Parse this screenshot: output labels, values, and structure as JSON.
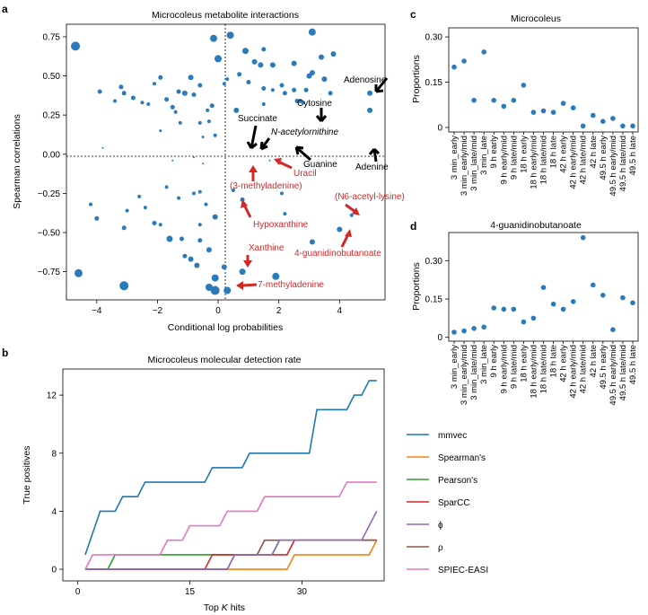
{
  "panels": {
    "a": {
      "letter": "a",
      "title": "Microcoleus metabolite interactions",
      "xlabel": "Conditional log probabilities",
      "ylabel": "Spearman correlations"
    },
    "b": {
      "letter": "b",
      "title": "Microcoleus molecular detection rate",
      "xlabel": "Top K hits",
      "ylabel": "True positives"
    },
    "c": {
      "letter": "c",
      "title": "Microcoleus",
      "ylabel": "Proportions"
    },
    "d": {
      "letter": "d",
      "title": "4-guanidinobutanoate",
      "ylabel": "Proportions"
    }
  },
  "annotations": [
    {
      "text": "Adenosine",
      "color": "#000000"
    },
    {
      "text": "Cytosine",
      "color": "#000000"
    },
    {
      "text": "Succinate",
      "color": "#000000"
    },
    {
      "text": "N-acetylornithine",
      "color": "#000000"
    },
    {
      "text": "Adenine",
      "color": "#000000"
    },
    {
      "text": "Guanine",
      "color": "#000000"
    },
    {
      "text": "Uracil",
      "color": "#d62728"
    },
    {
      "text": "(3-methyladenine)",
      "color": "#d62728"
    },
    {
      "text": "(N6-acetyl-lysine)",
      "color": "#d62728"
    },
    {
      "text": "Hypoxanthine",
      "color": "#d62728"
    },
    {
      "text": "4-guanidinobutanoate",
      "color": "#d62728"
    },
    {
      "text": "Xanthine",
      "color": "#d62728"
    },
    {
      "text": "7-methyladenine",
      "color": "#d62728"
    }
  ],
  "chart_data": [
    {
      "id": "a",
      "type": "scatter",
      "title": "Microcoleus metabolite interactions",
      "xlabel": "Conditional log probabilities",
      "ylabel": "Spearman correlations",
      "xlim": [
        -5.0,
        5.5
      ],
      "ylim": [
        -0.93,
        0.83
      ],
      "xticks": [
        -4,
        -2,
        0,
        2,
        4
      ],
      "yticks": [
        -0.75,
        -0.5,
        -0.25,
        0,
        0.25,
        0.5,
        0.75
      ],
      "color": "#2b7bba",
      "points": [
        [
          -4.7,
          0.69,
          5
        ],
        [
          -3.9,
          0.4,
          2.5
        ],
        [
          -3.4,
          0.34,
          2
        ],
        [
          -3.2,
          0.43,
          2.5
        ],
        [
          -3.1,
          0.39,
          2.5
        ],
        [
          -2.8,
          0.36,
          2.5
        ],
        [
          -2.5,
          0.33,
          2
        ],
        [
          -2.3,
          0.32,
          2
        ],
        [
          -2.1,
          0.45,
          2
        ],
        [
          -1.9,
          0.49,
          2.5
        ],
        [
          -1.7,
          0.35,
          2.5
        ],
        [
          -1.5,
          0.3,
          2.5
        ],
        [
          -1.4,
          0.27,
          2
        ],
        [
          -1.3,
          0.4,
          2.5
        ],
        [
          -1.25,
          0.2,
          2
        ],
        [
          -1.1,
          0.39,
          3
        ],
        [
          -0.9,
          0.49,
          3
        ],
        [
          -0.8,
          0.38,
          2.5
        ],
        [
          -0.6,
          0.44,
          2.5
        ],
        [
          -0.6,
          0.2,
          2
        ],
        [
          -0.5,
          0.11,
          1.5
        ],
        [
          -1.9,
          0.15,
          1.5
        ],
        [
          -0.35,
          0.28,
          2
        ],
        [
          -0.3,
          0.21,
          2
        ],
        [
          -0.2,
          0.31,
          2.5
        ],
        [
          -0.15,
          0.74,
          4
        ],
        [
          -0.1,
          0.12,
          2
        ],
        [
          0,
          0.61,
          4
        ],
        [
          0.2,
          0.45,
          2
        ],
        [
          0.3,
          0.48,
          2
        ],
        [
          0.4,
          0.76,
          4
        ],
        [
          0.6,
          0.28,
          3
        ],
        [
          0.7,
          0.51,
          2.5
        ],
        [
          0.9,
          0.66,
          3.5
        ],
        [
          1.0,
          0.46,
          2.5
        ],
        [
          1.2,
          0.59,
          3
        ],
        [
          1.4,
          0.57,
          3
        ],
        [
          1.5,
          0.42,
          2.5
        ],
        [
          1.5,
          0.67,
          2.5
        ],
        [
          1.5,
          0.32,
          2
        ],
        [
          1.8,
          0.57,
          3
        ],
        [
          1.8,
          0.41,
          2
        ],
        [
          2.1,
          0.44,
          2.5
        ],
        [
          2.2,
          0.39,
          2.5
        ],
        [
          2.5,
          0.41,
          2.5
        ],
        [
          2.5,
          0.58,
          3
        ],
        [
          2.6,
          0.34,
          2.5
        ],
        [
          2.7,
          0.34,
          2.5
        ],
        [
          2.8,
          0.33,
          2
        ],
        [
          2.9,
          0.41,
          2.5
        ],
        [
          3.0,
          0.5,
          3
        ],
        [
          3.1,
          0.78,
          4
        ],
        [
          3.1,
          0.52,
          3
        ],
        [
          3.4,
          0.62,
          3
        ],
        [
          3.5,
          0.48,
          3
        ],
        [
          3.7,
          0.39,
          2.5
        ],
        [
          3.8,
          0.64,
          3
        ],
        [
          5.0,
          0.39,
          3
        ],
        [
          5.0,
          0.28,
          3
        ],
        [
          -3.8,
          0.04,
          1
        ],
        [
          -0.8,
          -0.02,
          1
        ],
        [
          -4.2,
          -0.32,
          2
        ],
        [
          -4.0,
          -0.41,
          2.5
        ],
        [
          -3.1,
          -0.47,
          2.5
        ],
        [
          -3.0,
          -0.36,
          2
        ],
        [
          -2.6,
          -0.27,
          2
        ],
        [
          -2.4,
          -0.34,
          2
        ],
        [
          -2.1,
          -0.44,
          2.5
        ],
        [
          -1.9,
          -0.45,
          2
        ],
        [
          -1.7,
          -0.21,
          2
        ],
        [
          -1.6,
          -0.54,
          3.5
        ],
        [
          -1.3,
          -0.28,
          2
        ],
        [
          -1.2,
          -0.54,
          2.5
        ],
        [
          -1.1,
          -0.65,
          2.5
        ],
        [
          -0.9,
          -0.67,
          3
        ],
        [
          -0.8,
          -0.25,
          2
        ],
        [
          -0.7,
          -0.71,
          3
        ],
        [
          -0.6,
          -0.55,
          2.5
        ],
        [
          -0.6,
          -0.45,
          2
        ],
        [
          -0.6,
          -0.24,
          2
        ],
        [
          -0.4,
          -0.32,
          2
        ],
        [
          -0.3,
          -0.61,
          3
        ],
        [
          -0.3,
          -0.85,
          4
        ],
        [
          -0.1,
          -0.4,
          3
        ],
        [
          0.2,
          -0.72,
          3
        ],
        [
          -0.5,
          -0.06,
          1
        ],
        [
          -4.6,
          -0.76,
          4.5
        ],
        [
          -3.1,
          -0.84,
          5
        ],
        [
          -0.1,
          -0.79,
          4
        ],
        [
          -0.1,
          -0.87,
          5
        ],
        [
          0.3,
          -0.87,
          4
        ],
        [
          0.5,
          -0.23,
          2
        ],
        [
          0.8,
          -0.29,
          2.5
        ],
        [
          0.8,
          -0.75,
          3.5
        ],
        [
          2.1,
          -0.25,
          2
        ],
        [
          2.2,
          -0.38,
          2
        ],
        [
          1.9,
          -0.78,
          4
        ],
        [
          3.1,
          -0.56,
          3
        ],
        [
          4.0,
          -0.48,
          3
        ],
        [
          4.4,
          -0.39,
          2
        ],
        [
          -1.5,
          -0.04,
          1
        ],
        [
          1.7,
          -0.04,
          1
        ]
      ]
    },
    {
      "id": "b",
      "type": "line",
      "title": "Microcoleus molecular detection rate",
      "xlabel": "Top K hits",
      "ylabel": "True positives",
      "xlim": [
        -2,
        41
      ],
      "ylim": [
        -0.8,
        13.8
      ],
      "xticks": [
        0,
        15,
        30
      ],
      "yticks": [
        0,
        4,
        8,
        12
      ],
      "series": [
        {
          "name": "mmvec",
          "color": "#1f77b4",
          "values": [
            [
              1,
              1
            ],
            [
              3,
              4
            ],
            [
              5,
              4
            ],
            [
              6,
              5
            ],
            [
              8,
              5
            ],
            [
              9,
              6
            ],
            [
              17,
              6
            ],
            [
              18,
              7
            ],
            [
              22,
              7
            ],
            [
              23,
              8
            ],
            [
              31,
              8
            ],
            [
              32,
              11
            ],
            [
              36,
              11
            ],
            [
              37,
              12
            ],
            [
              38,
              12
            ],
            [
              39,
              13
            ],
            [
              40,
              13
            ]
          ]
        },
        {
          "name": "Spearman's",
          "color": "#ff7f0e",
          "values": [
            [
              1,
              0
            ],
            [
              28,
              0
            ],
            [
              29,
              1
            ],
            [
              39,
              1
            ],
            [
              40,
              2
            ]
          ]
        },
        {
          "name": "Pearson's",
          "color": "#2ca02c",
          "values": [
            [
              1,
              0
            ],
            [
              4,
              0
            ],
            [
              5,
              1
            ],
            [
              26,
              1
            ],
            [
              27,
              2
            ],
            [
              40,
              2
            ]
          ]
        },
        {
          "name": "SparCC",
          "color": "#d62728",
          "values": [
            [
              1,
              0
            ],
            [
              17,
              0
            ],
            [
              18,
              1
            ],
            [
              28,
              1
            ],
            [
              29,
              2
            ],
            [
              40,
              2
            ]
          ]
        },
        {
          "name": "ϕ",
          "color": "#9467bd",
          "values": [
            [
              1,
              0
            ],
            [
              20,
              0
            ],
            [
              21,
              1
            ],
            [
              26,
              1
            ],
            [
              27,
              2
            ],
            [
              38,
              2
            ],
            [
              40,
              4
            ]
          ]
        },
        {
          "name": "ρ",
          "color": "#8c564b",
          "values": [
            [
              1,
              0
            ],
            [
              20,
              0
            ],
            [
              21,
              1
            ],
            [
              24,
              1
            ],
            [
              25,
              2
            ],
            [
              40,
              2
            ]
          ]
        },
        {
          "name": "SPIEC-EASI",
          "color": "#e377c2",
          "values": [
            [
              1,
              0
            ],
            [
              2,
              1
            ],
            [
              11,
              1
            ],
            [
              12,
              2
            ],
            [
              14,
              2
            ],
            [
              15,
              3
            ],
            [
              19,
              3
            ],
            [
              20,
              4
            ],
            [
              24,
              4
            ],
            [
              25,
              5
            ],
            [
              35,
              5
            ],
            [
              36,
              6
            ],
            [
              40,
              6
            ]
          ]
        }
      ]
    },
    {
      "id": "c",
      "type": "scatter",
      "title": "Microcoleus",
      "ylabel": "Proportions",
      "ylim": [
        -0.015,
        0.33
      ],
      "yticks": [
        0,
        0.15,
        0.3
      ],
      "categories": [
        "3 min_early",
        "3 min_early/mid",
        "3 min_late/mid",
        "3 min_late",
        "9 h early",
        "9 h early/mid",
        "9 h late/mid",
        "18 h early",
        "18 h early/mid",
        "18 h late/mid",
        "18 h late",
        "42 h early",
        "42 h early/mid",
        "42 h late/mid",
        "42 h late",
        "49.5 h early",
        "49.5 h early/mid",
        "49.5 h late/mid",
        "49.5 h late"
      ],
      "values": [
        0.2,
        0.22,
        0.09,
        0.25,
        0.09,
        0.07,
        0.09,
        0.14,
        0.05,
        0.055,
        0.05,
        0.08,
        0.065,
        0.005,
        0.04,
        0.02,
        0.03,
        0.005,
        0.005
      ]
    },
    {
      "id": "d",
      "type": "scatter",
      "title": "4-guanidinobutanoate",
      "ylabel": "Proportions",
      "ylim": [
        -0.015,
        0.41
      ],
      "yticks": [
        0,
        0.15,
        0.3
      ],
      "categories": [
        "3 min_early",
        "3 min_early/mid",
        "3 min_late/mid",
        "3 min_late",
        "9 h early",
        "9 h early/mid",
        "9 h late/mid",
        "18 h early",
        "18 h early/mid",
        "18 h late/mid",
        "18 h late",
        "42 h early",
        "42 h early/mid",
        "42 h late/mid",
        "42 h late",
        "49.5 h early",
        "49.5 h early/mid",
        "49.5 h late/mid",
        "49.5 h late"
      ],
      "values": [
        0.02,
        0.025,
        0.035,
        0.04,
        0.115,
        0.11,
        0.11,
        0.06,
        0.075,
        0.195,
        0.13,
        0.11,
        0.14,
        0.39,
        0.205,
        0.165,
        0.03,
        0.155,
        0.135
      ]
    }
  ]
}
